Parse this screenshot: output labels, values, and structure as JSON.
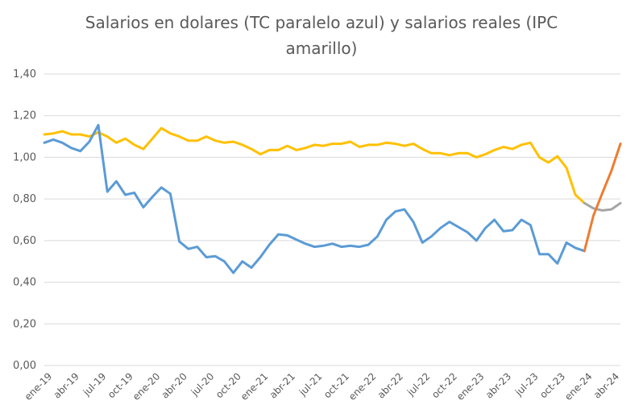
{
  "chart_data": {
    "type": "line",
    "title_lines": [
      "Salarios en dolares (TC paralelo azul) y salarios reales (IPC",
      "amarillo)"
    ],
    "y_ticks": [
      "0,00",
      "0,20",
      "0,40",
      "0,60",
      "0,80",
      "1,00",
      "1,20",
      "1,40"
    ],
    "ylim": [
      0,
      1.4
    ],
    "x_ticks": [
      "ene-19",
      "abr-19",
      "jul-19",
      "oct-19",
      "ene-20",
      "abr-20",
      "jul-20",
      "oct-20",
      "ene-21",
      "abr-21",
      "jul-21",
      "oct-21",
      "ene-22",
      "abr-22",
      "jul-22",
      "oct-22",
      "ene-23",
      "abr-23",
      "jul-23",
      "oct-23",
      "ene-24",
      "abr-24"
    ],
    "month_count": 65,
    "grid": true,
    "legend": "none",
    "series": [
      {
        "color": "#FFC000",
        "start_month": 0,
        "values": [
          1.11,
          1.115,
          1.125,
          1.11,
          1.11,
          1.1,
          1.12,
          1.1,
          1.07,
          1.09,
          1.06,
          1.04,
          1.09,
          1.14,
          1.115,
          1.1,
          1.08,
          1.08,
          1.1,
          1.08,
          1.07,
          1.075,
          1.06,
          1.04,
          1.015,
          1.035,
          1.035,
          1.055,
          1.035,
          1.045,
          1.06,
          1.055,
          1.065,
          1.065,
          1.075,
          1.05,
          1.06,
          1.06,
          1.07,
          1.065,
          1.055,
          1.065,
          1.04,
          1.02,
          1.02,
          1.01,
          1.02,
          1.02,
          1.0,
          1.015,
          1.035,
          1.05,
          1.04,
          1.06,
          1.07,
          1.0,
          0.975,
          1.005,
          0.95,
          0.82,
          0.78
        ]
      },
      {
        "color": "#5B9BD5",
        "start_month": 0,
        "values": [
          1.07,
          1.085,
          1.07,
          1.045,
          1.03,
          1.075,
          1.155,
          0.835,
          0.885,
          0.82,
          0.83,
          0.76,
          0.81,
          0.855,
          0.825,
          0.595,
          0.56,
          0.57,
          0.52,
          0.525,
          0.5,
          0.445,
          0.5,
          0.47,
          0.52,
          0.58,
          0.63,
          0.625,
          0.605,
          0.585,
          0.57,
          0.575,
          0.585,
          0.57,
          0.575,
          0.57,
          0.58,
          0.62,
          0.7,
          0.74,
          0.75,
          0.69,
          0.59,
          0.62,
          0.66,
          0.69,
          0.665,
          0.64,
          0.6,
          0.66,
          0.7,
          0.645,
          0.65,
          0.7,
          0.675,
          0.535,
          0.535,
          0.49,
          0.59,
          0.565,
          0.55
        ]
      },
      {
        "color": "#A5A5A5",
        "start_month": 60,
        "values": [
          0.78,
          0.755,
          0.745,
          0.75,
          0.78
        ]
      },
      {
        "color": "#ED7D31",
        "start_month": 60,
        "values": [
          0.55,
          0.72,
          0.83,
          0.935,
          1.065
        ]
      }
    ]
  }
}
